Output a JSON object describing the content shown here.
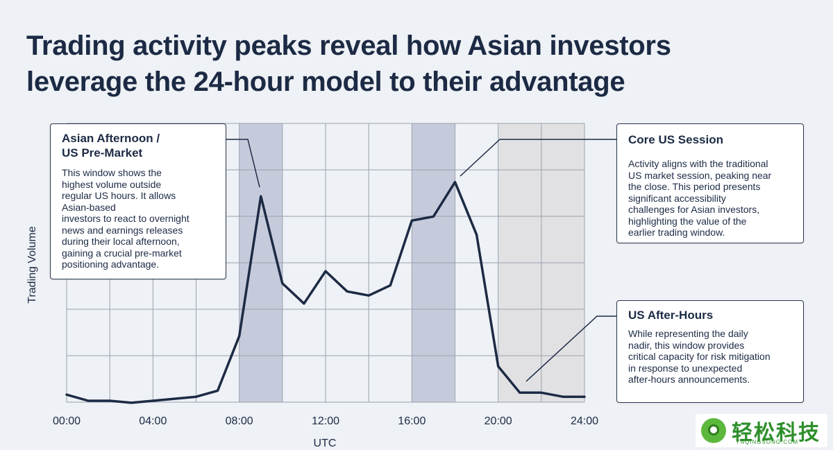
{
  "title_line1": "Trading activity peaks reveal how Asian investors",
  "title_line2": "leverage the 24-hour model to their advantage",
  "chart_data": {
    "type": "line",
    "xlabel": "UTC",
    "ylabel": "Trading Volume",
    "x_ticks": [
      "00:00",
      "04:00",
      "08:00",
      "12:00",
      "16:00",
      "20:00",
      "24:00"
    ],
    "xlim": [
      0,
      24
    ],
    "ylim": [
      0,
      100
    ],
    "grid": true,
    "series": [
      {
        "x": [
          0,
          1,
          2,
          3,
          4,
          5,
          6,
          7,
          8,
          9,
          10,
          11,
          12,
          13,
          14,
          15,
          16,
          17,
          18,
          19,
          20,
          21,
          22,
          23,
          24
        ],
        "y": [
          3,
          0,
          0,
          -1,
          0,
          1,
          2,
          5,
          32,
          101,
          58,
          48,
          64,
          54,
          52,
          57,
          89,
          91,
          108,
          82,
          17,
          4,
          4,
          2,
          2
        ],
        "color": "#1c2a44"
      }
    ],
    "highlights": [
      {
        "from": 8,
        "to": 10,
        "color": "#c6cbdc"
      },
      {
        "from": 16,
        "to": 18,
        "color": "#c6cbdc"
      },
      {
        "from": 20,
        "to": 24,
        "color": "#e1e1e3"
      }
    ]
  },
  "annotations": {
    "asian": {
      "title_l1": "Asian Afternoon /",
      "title_l2": "US Pre-Market",
      "body": [
        "This window shows the",
        "highest volume outside",
        "regular US hours. It allows",
        "Asian-based",
        "investors to react to overnight",
        "news and earnings releases",
        "during their local afternoon,",
        "gaining a crucial pre-market",
        "positioning advantage."
      ]
    },
    "core": {
      "title": "Core US Session",
      "body": [
        "Activity aligns with the traditional",
        "US market session, peaking near",
        "the close. This period presents",
        "significant accessibility",
        "challenges for Asian investors,",
        "highlighting the value of the",
        "earlier trading window."
      ]
    },
    "after": {
      "title": "US After-Hours",
      "body": [
        "While representing the daily",
        "nadir, this window provides",
        "critical capacity for risk mitigation",
        "in response to unexpected",
        "after-hours announcements."
      ]
    }
  },
  "watermark": {
    "logo_text": "轻松科技",
    "logo_sub": "YNQINGSONG.COM",
    "brand_color": "#2d8f2a"
  },
  "colors": {
    "line": "#1c2a44",
    "grid": "#9aa1ad",
    "background": "#eef1f5"
  }
}
